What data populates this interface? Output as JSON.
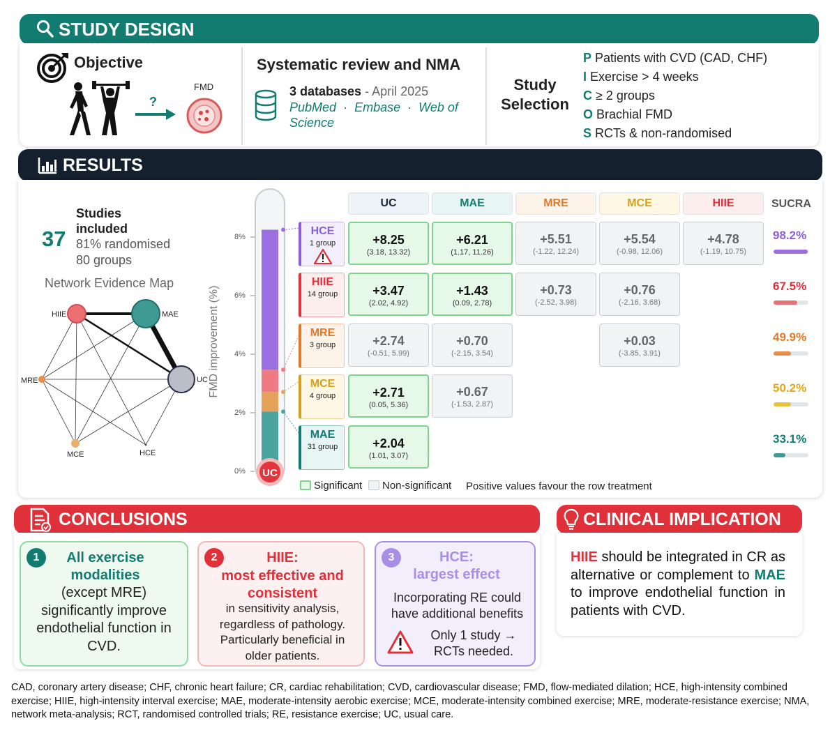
{
  "study_design": {
    "title": "STUDY DESIGN",
    "objective": {
      "title": "Objective",
      "question_mark": "?",
      "fmd_label": "FMD"
    },
    "review": {
      "title": "Systematic review and NMA",
      "databases_count": "3 databases",
      "databases_date": " - April 2025",
      "db_list": [
        "PubMed",
        "Embase",
        "Web of",
        "Science"
      ],
      "separator": "·"
    },
    "selection": {
      "title": "Study Selection",
      "pico": [
        {
          "letter": "P",
          "text": "Patients with CVD (CAD, CHF)"
        },
        {
          "letter": "I",
          "text": "Exercise > 4 weeks"
        },
        {
          "letter": "C",
          "text": "≥ 2 groups"
        },
        {
          "letter": "O",
          "text": "Brachial FMD"
        },
        {
          "letter": "S",
          "text": "RCTs & non-randomised"
        }
      ]
    }
  },
  "results": {
    "title": "RESULTS",
    "studies": {
      "count": "37",
      "label_line1": "Studies",
      "label_line2": "included",
      "randomised": "81% randomised",
      "groups": "80 groups"
    },
    "network_title": "Network Evidence Map",
    "network_nodes": [
      {
        "id": "HIIE",
        "color": "#ee6f72",
        "r": 13
      },
      {
        "id": "MAE",
        "color": "#3e9a93",
        "r": 20
      },
      {
        "id": "UC",
        "color": "#b9bec8",
        "r": 19
      },
      {
        "id": "MRE",
        "color": "#e98f4b",
        "r": 5
      },
      {
        "id": "MCE",
        "color": "#e9b06a",
        "r": 6
      },
      {
        "id": "HCE",
        "color": "#555555",
        "r": 1.5
      }
    ],
    "thermometer": {
      "ylabel": "FMD improvement (%)",
      "yticks": [
        "0%",
        "2%",
        "4%",
        "6%",
        "8%"
      ],
      "bulb_label": "UC",
      "segments": [
        {
          "name": "MAE",
          "value": 2.04,
          "color": "#4aa39c"
        },
        {
          "name": "MCE",
          "value": 2.71,
          "color": "#e5a25a"
        },
        {
          "name": "HIIE",
          "value": 3.47,
          "color": "#ef7a84"
        },
        {
          "name": "HCE",
          "value": 8.25,
          "color": "#9b6fe0"
        }
      ]
    },
    "columns": [
      {
        "label": "UC",
        "color": "#17273a",
        "bg": "#eef3fa"
      },
      {
        "label": "MAE",
        "color": "#117c6f",
        "bg": "#e7f6f4"
      },
      {
        "label": "MRE",
        "color": "#e07a2a",
        "bg": "#fdf3e9"
      },
      {
        "label": "MCE",
        "color": "#d4a11c",
        "bg": "#fdf7e4"
      },
      {
        "label": "HIIE",
        "color": "#e0303a",
        "bg": "#fdeeee"
      }
    ],
    "sucra_header": "SUCRA",
    "rows": [
      {
        "name": "HCE",
        "groups": "1 group",
        "color": "#8b5fd6",
        "bg": "#f3eefc",
        "warning": true,
        "cells": [
          {
            "col": 0,
            "v": "+8.25",
            "ci": "(3.18, 13.32)",
            "sig": true
          },
          {
            "col": 1,
            "v": "+6.21",
            "ci": "(1.17, 11.26)",
            "sig": true
          },
          {
            "col": 2,
            "v": "+5.51",
            "ci": "(-1.22, 12.24)",
            "sig": false
          },
          {
            "col": 3,
            "v": "+5.54",
            "ci": "(-0.98, 12.06)",
            "sig": false
          },
          {
            "col": 4,
            "v": "+4.78",
            "ci": "(-1.19, 10.75)",
            "sig": false
          }
        ],
        "sucra": "98.2%",
        "sucra_value": 98.2
      },
      {
        "name": "HIIE",
        "groups": "14 group",
        "color": "#e0303a",
        "bg": "#fdeeee",
        "warning": false,
        "cells": [
          {
            "col": 0,
            "v": "+3.47",
            "ci": "(2.02, 4.92)",
            "sig": true
          },
          {
            "col": 1,
            "v": "+1.43",
            "ci": "(0.09, 2.78)",
            "sig": true
          },
          {
            "col": 2,
            "v": "+0.73",
            "ci": "(-2.52, 3.98)",
            "sig": false
          },
          {
            "col": 3,
            "v": "+0.76",
            "ci": "(-2.16, 3.68)",
            "sig": false
          }
        ],
        "sucra": "67.5%",
        "sucra_value": 67.5
      },
      {
        "name": "MRE",
        "groups": "3 group",
        "color": "#e07a2a",
        "bg": "#fdf3e9",
        "warning": false,
        "cells": [
          {
            "col": 0,
            "v": "+2.74",
            "ci": "(-0.51, 5.99)",
            "sig": false
          },
          {
            "col": 1,
            "v": "+0.70",
            "ci": "(-2.15, 3.54)",
            "sig": false
          },
          {
            "col": 3,
            "v": "+0.03",
            "ci": "(-3.85, 3.91)",
            "sig": false
          }
        ],
        "sucra": "49.9%",
        "sucra_value": 49.9
      },
      {
        "name": "MCE",
        "groups": "4 group",
        "color": "#d4a11c",
        "bg": "#fdf7e4",
        "warning": false,
        "cells": [
          {
            "col": 0,
            "v": "+2.71",
            "ci": "(0.05, 5.36)",
            "sig": true
          },
          {
            "col": 1,
            "v": "+0.67",
            "ci": "(-1.53, 2.87)",
            "sig": false
          }
        ],
        "sucra": "50.2%",
        "sucra_value": 50.2
      },
      {
        "name": "MAE",
        "groups": "31 group",
        "color": "#117c6f",
        "bg": "#e7f6f4",
        "warning": false,
        "cells": [
          {
            "col": 0,
            "v": "+2.04",
            "ci": "(1.01, 3.07)",
            "sig": true
          }
        ],
        "sucra": "33.1%",
        "sucra_value": 33.1
      }
    ],
    "legend": {
      "significant": "Significant",
      "non_significant": "Non-significant",
      "note": "Positive values favour the row treatment"
    }
  },
  "conclusions": {
    "title": "CONCLUSIONS",
    "items": [
      {
        "num": "1",
        "head": "All exercise modalities",
        "body": "(except MRE) significantly improve endothelial function in CVD."
      },
      {
        "num": "2",
        "head": "HIIE:",
        "head2": "most effective and consistent",
        "body": "in sensitivity analysis, regardless of pathology. Particularly beneficial in older patients."
      },
      {
        "num": "3",
        "head": "HCE:",
        "head2": "largest effect",
        "body": "Incorporating RE could have additional benefits",
        "warning": "Only 1 study →",
        "warning2": "RCTs needed."
      }
    ]
  },
  "clinical": {
    "title": "CLINICAL IMPLICATION",
    "hl1": "HIIE",
    "t1": " should be integrated in CR as alternative or complement to ",
    "hl2": "MAE",
    "t2": " to improve endothelial function in patients with CVD."
  },
  "footnote": "CAD, coronary artery disease; CHF, chronic heart failure; CR, cardiac rehabilitation; CVD, cardiovascular disease; FMD, flow-mediated dilation; HCE, high-intensity combined exercise; HIIE, high-intensity interval exercise; MAE, moderate-intensity aerobic exercise; MCE, moderate-intensity combined exercise; MRE, moderate-resistance exercise; NMA, network meta-analysis; RCT, randomised controlled trials; RE, resistance exercise; UC, usual care.",
  "colors": {
    "teal": "#117c6f",
    "navy": "#14202e",
    "red": "#e0303a",
    "purple": "#8b5fd6",
    "green": "#2e9e52"
  }
}
